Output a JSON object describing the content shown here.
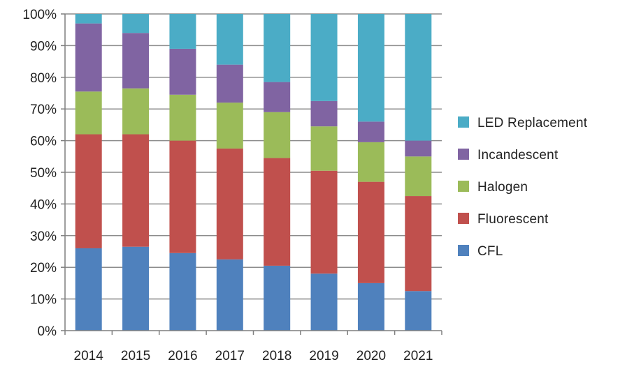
{
  "chart_data": {
    "type": "bar",
    "stacked": true,
    "percent_stacked": true,
    "title": "",
    "xlabel": "",
    "ylabel": "",
    "ylim": [
      0,
      100
    ],
    "y_ticks": [
      "0%",
      "10%",
      "20%",
      "30%",
      "40%",
      "50%",
      "60%",
      "70%",
      "80%",
      "90%",
      "100%"
    ],
    "categories": [
      "2014",
      "2015",
      "2016",
      "2017",
      "2018",
      "2019",
      "2020",
      "2021"
    ],
    "grid": true,
    "legend_position": "right",
    "legend_order": [
      "LED Replacement",
      "Incandescent",
      "Halogen",
      "Fluorescent",
      "CFL"
    ],
    "series": [
      {
        "name": "CFL",
        "color": "#4F81BD",
        "values": [
          26,
          26.5,
          24.5,
          22.5,
          20.5,
          18,
          15,
          12.5
        ]
      },
      {
        "name": "Fluorescent",
        "color": "#C0504D",
        "values": [
          36,
          35.5,
          35.5,
          35,
          34,
          32.5,
          32,
          30
        ]
      },
      {
        "name": "Halogen",
        "color": "#9BBB59",
        "values": [
          13.5,
          14.5,
          14.5,
          14.5,
          14.5,
          14,
          12.5,
          12.5
        ]
      },
      {
        "name": "Incandescent",
        "color": "#8064A2",
        "values": [
          21.5,
          17.5,
          14.5,
          12,
          9.5,
          8,
          6.5,
          5
        ]
      },
      {
        "name": "LED Replacement",
        "color": "#4BACC6",
        "values": [
          3,
          6,
          11,
          16,
          21.5,
          27.5,
          34,
          40
        ]
      }
    ]
  }
}
